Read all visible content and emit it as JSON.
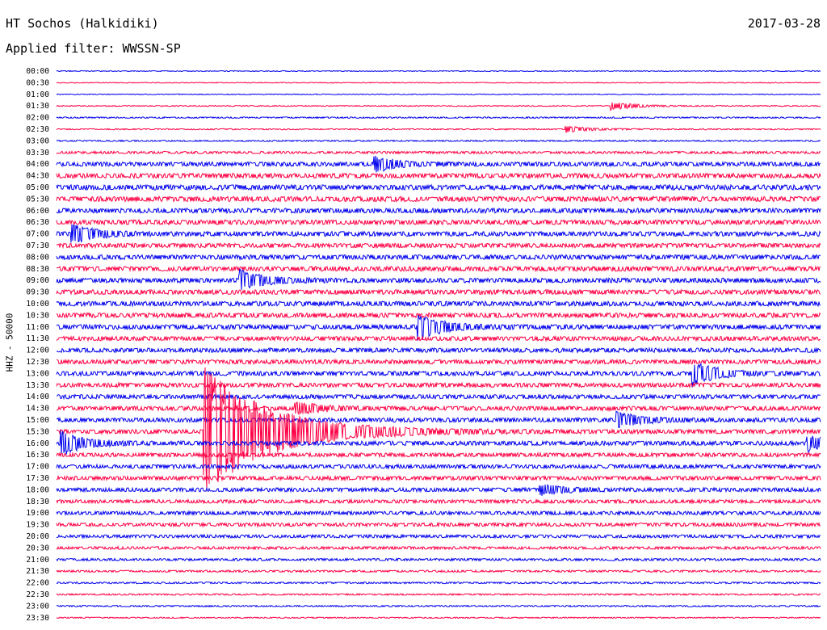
{
  "header": {
    "station": "HT Sochos (Halkidiki)",
    "date": "2017-03-28",
    "filter": "Applied filter: WWSSN-SP"
  },
  "colors": {
    "odd": "#0000ee",
    "even": "#ff0044"
  },
  "chart_data": {
    "type": "line",
    "title": "HT Sochos (Halkidiki)",
    "ylabel": "HHZ - 50000",
    "row_labels": [
      "00:00",
      "00:30",
      "01:00",
      "01:30",
      "02:00",
      "02:30",
      "03:00",
      "03:30",
      "04:00",
      "04:30",
      "05:00",
      "05:30",
      "06:00",
      "06:30",
      "07:00",
      "07:30",
      "08:00",
      "08:30",
      "09:00",
      "09:30",
      "10:00",
      "10:30",
      "11:00",
      "11:30",
      "12:00",
      "12:30",
      "13:00",
      "13:30",
      "14:00",
      "14:30",
      "15:00",
      "15:30",
      "16:00",
      "16:30",
      "17:00",
      "17:30",
      "18:00",
      "18:30",
      "19:00",
      "19:30",
      "20:00",
      "20:30",
      "21:00",
      "21:30",
      "22:00",
      "22:30",
      "23:00",
      "23:30"
    ],
    "noise_level": [
      0.4,
      0.4,
      0.4,
      0.5,
      0.7,
      0.6,
      0.7,
      1.2,
      2.2,
      2.4,
      2.6,
      2.6,
      2.4,
      2.4,
      2.4,
      2.2,
      2.4,
      2.4,
      2.4,
      2.4,
      2.4,
      2.4,
      2.4,
      2.2,
      2.2,
      2.2,
      2.2,
      2.2,
      2.2,
      2.2,
      2.2,
      2.2,
      2.2,
      2.0,
      2.0,
      2.0,
      2.0,
      1.8,
      1.8,
      1.8,
      1.6,
      1.4,
      1.2,
      1.0,
      0.9,
      0.8,
      0.7,
      0.6
    ],
    "events_minute_of_half_hour": [
      {
        "row": 3,
        "minute": 21.8,
        "amp": 5
      },
      {
        "row": 5,
        "minute": 20.0,
        "amp": 4
      },
      {
        "row": 8,
        "minute": 12.5,
        "amp": 9
      },
      {
        "row": 14,
        "minute": 0.6,
        "amp": 12
      },
      {
        "row": 18,
        "minute": 7.2,
        "amp": 12
      },
      {
        "row": 22,
        "minute": 14.2,
        "amp": 16
      },
      {
        "row": 26,
        "minute": 25.0,
        "amp": 15
      },
      {
        "row": 29,
        "minute": 9.4,
        "amp": 8
      },
      {
        "row": 30,
        "minute": 22.0,
        "amp": 10
      },
      {
        "row": 31,
        "minute": 5.8,
        "amp": 80
      },
      {
        "row": 32,
        "minute": 0.2,
        "amp": 14
      },
      {
        "row": 32,
        "minute": 29.5,
        "amp": 10
      },
      {
        "row": 36,
        "minute": 19.0,
        "amp": 6
      }
    ]
  }
}
